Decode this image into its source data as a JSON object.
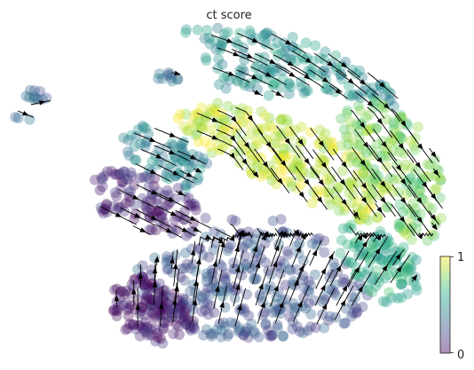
{
  "chart_data": {
    "type": "scatter",
    "title": "ct score",
    "xlabel": "",
    "ylabel": "",
    "grid": false,
    "legend": "none",
    "colormap": "viridis",
    "point_alpha": 0.35,
    "colorbar": {
      "min": 0,
      "max": 1,
      "tick_labels": [
        "1",
        "0"
      ],
      "placement": "right"
    },
    "overlay": "velocity-streamlines",
    "clusters": [
      {
        "id": "top-arc",
        "score": 0.5,
        "n": 160
      },
      {
        "id": "top-left-bit",
        "score": 0.35,
        "n": 10
      },
      {
        "id": "far-left",
        "score": 0.3,
        "n": 14
      },
      {
        "id": "band-center",
        "score": 0.9,
        "n": 240
      },
      {
        "id": "band-right",
        "score": 0.78,
        "n": 160
      },
      {
        "id": "left-teal",
        "score": 0.45,
        "n": 70
      },
      {
        "id": "left-purple",
        "score": 0.1,
        "n": 110
      },
      {
        "id": "bottom-blue",
        "score": 0.25,
        "n": 320
      },
      {
        "id": "bottom-purple",
        "score": 0.06,
        "n": 130
      },
      {
        "id": "bottom-green",
        "score": 0.6,
        "n": 110
      }
    ]
  },
  "colors": {
    "viridis": [
      "#440154",
      "#482878",
      "#3e4989",
      "#31688e",
      "#26828e",
      "#1f9e89",
      "#35b779",
      "#6ece58",
      "#b5de2b",
      "#fde725"
    ],
    "stream": "#000000",
    "text": "#222222"
  }
}
